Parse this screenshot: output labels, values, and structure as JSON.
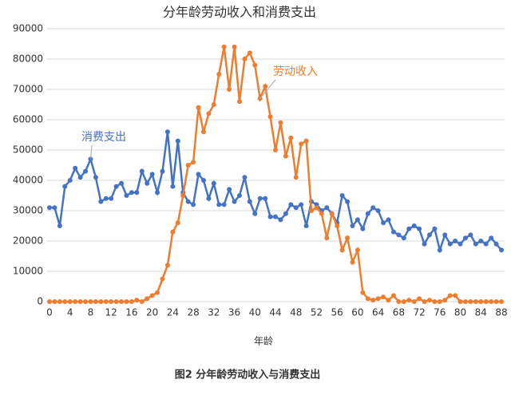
{
  "chart_data": {
    "type": "line",
    "title": "分年龄劳动收入和消费支出",
    "x_label": "年龄",
    "caption": "图2 分年龄劳动收入与消费支出",
    "categories": [
      "0",
      null,
      null,
      null,
      "4",
      null,
      null,
      null,
      "8",
      null,
      null,
      null,
      "12",
      null,
      null,
      null,
      "16",
      null,
      null,
      null,
      "20",
      null,
      null,
      null,
      "24",
      null,
      null,
      null,
      "28",
      null,
      null,
      null,
      "32",
      null,
      null,
      null,
      "36",
      null,
      null,
      null,
      "40",
      null,
      null,
      null,
      "44",
      null,
      null,
      null,
      "48",
      null,
      null,
      null,
      "52",
      null,
      null,
      null,
      "56",
      null,
      null,
      null,
      "60",
      null,
      null,
      null,
      "64",
      null,
      null,
      null,
      "68",
      null,
      null,
      null,
      "72",
      null,
      null,
      null,
      "76",
      null,
      null,
      null,
      "80",
      null,
      null,
      null,
      "84",
      null,
      null,
      null,
      "88"
    ],
    "series": [
      {
        "name": "消费支出",
        "color": "#4472c4",
        "values": [
          31000,
          31000,
          25000,
          38000,
          40000,
          44000,
          41000,
          43000,
          47000,
          41000,
          33000,
          34000,
          34000,
          38000,
          39000,
          35000,
          36000,
          36000,
          43000,
          39000,
          42000,
          36000,
          43000,
          56000,
          38000,
          53000,
          36000,
          33000,
          32000,
          42000,
          40000,
          34000,
          39000,
          32000,
          32000,
          37000,
          33000,
          35000,
          41000,
          33000,
          29000,
          34000,
          34000,
          28000,
          28000,
          27000,
          29000,
          32000,
          31000,
          32000,
          25000,
          33000,
          32000,
          30000,
          31000,
          29000,
          26000,
          35000,
          33000,
          25000,
          27000,
          24000,
          29000,
          31000,
          30000,
          26000,
          27000,
          23000,
          22000,
          21000,
          24000,
          25000,
          24000,
          19000,
          22000,
          24000,
          17000,
          22000,
          19000,
          20000,
          19000,
          21000,
          22000,
          19000,
          20000,
          19000,
          21000,
          19000,
          17000
        ]
      },
      {
        "name": "劳动收入",
        "color": "#ed7d31",
        "values": [
          0,
          0,
          0,
          0,
          0,
          0,
          0,
          0,
          0,
          0,
          0,
          0,
          0,
          0,
          0,
          0,
          0,
          500,
          0,
          1000,
          2000,
          3000,
          7500,
          12000,
          23000,
          26000,
          35000,
          45000,
          46000,
          64000,
          56000,
          62000,
          65000,
          75000,
          84000,
          70000,
          84000,
          66000,
          80000,
          82000,
          78000,
          67000,
          71000,
          61000,
          50000,
          59000,
          48000,
          54000,
          41000,
          52000,
          53000,
          30000,
          31000,
          29000,
          21000,
          29000,
          25000,
          17000,
          21000,
          13000,
          17000,
          3000,
          1000,
          500,
          1000,
          1500,
          500,
          2000,
          0,
          0,
          500,
          0,
          1000,
          0,
          500,
          0,
          0,
          500,
          2000,
          2000,
          0,
          0,
          0,
          0,
          0,
          0,
          0,
          0,
          0
        ]
      }
    ],
    "ylim": [
      0,
      90000
    ],
    "yticks": [
      0,
      10000,
      20000,
      30000,
      40000,
      50000,
      60000,
      70000,
      80000,
      90000
    ],
    "grid": true
  }
}
